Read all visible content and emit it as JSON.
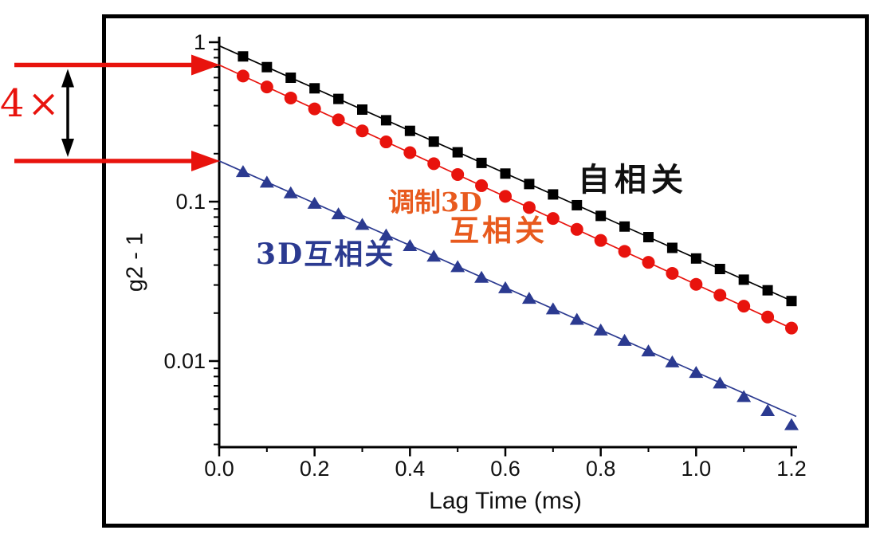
{
  "figure": {
    "background": "#ffffff",
    "frame_color": "#000000"
  },
  "chart_data": {
    "type": "line",
    "title": "",
    "xlabel": "Lag Time (ms)",
    "ylabel": "g2 - 1",
    "x_axis": {
      "range": [
        0,
        1.21
      ],
      "major_ticks": [
        0.0,
        0.2,
        0.4,
        0.6,
        0.8,
        1.0,
        1.2
      ],
      "major_tick_labels": [
        "0.0",
        "0.2",
        "0.4",
        "0.6",
        "0.8",
        "1.0",
        "1.2"
      ],
      "minor_ticks": [
        0.1,
        0.3,
        0.5,
        0.7,
        0.9,
        1.1
      ]
    },
    "y_axis": {
      "scale": "log",
      "range": [
        0.0029,
        1.06
      ],
      "major_ticks": [
        1,
        0.1,
        0.01
      ],
      "major_tick_labels": [
        "1",
        "0.1",
        "0.01"
      ],
      "minor_ticks": [
        0.9,
        0.8,
        0.7,
        0.6,
        0.5,
        0.4,
        0.3,
        0.2,
        0.09,
        0.08,
        0.07,
        0.06,
        0.05,
        0.04,
        0.03,
        0.02,
        0.009,
        0.008,
        0.007,
        0.006,
        0.005,
        0.004,
        0.003
      ]
    },
    "x": [
      0.05,
      0.1,
      0.15,
      0.2,
      0.25,
      0.3,
      0.35,
      0.4,
      0.45,
      0.5,
      0.55,
      0.6,
      0.65,
      0.7,
      0.75,
      0.8,
      0.85,
      0.9,
      0.95,
      1.0,
      1.05,
      1.1,
      1.15,
      1.2
    ],
    "series": [
      {
        "name": "autocorrelation",
        "label": "自相关",
        "label_color": "#111111",
        "color": "#000000",
        "marker": "square",
        "intercept": 0.95,
        "decay_rate_per_ms": 3.07,
        "fit_line_t": [
          0,
          1.19
        ],
        "values": [
          0.815,
          0.698,
          0.599,
          0.514,
          0.441,
          0.378,
          0.324,
          0.278,
          0.238,
          0.204,
          0.175,
          0.15,
          0.129,
          0.111,
          0.095,
          0.0814,
          0.0698,
          0.0599,
          0.0513,
          0.044,
          0.0378,
          0.0324,
          0.0278,
          0.0238
        ]
      },
      {
        "name": "modulated-3d-cross-correlation",
        "label_line1": "调制3D",
        "label_line2": "互相关",
        "label_color": "#e85a1e",
        "color": "#e8130d",
        "marker": "circle",
        "intercept": 0.72,
        "decay_rate_per_ms": 3.17,
        "fit_line_t": [
          0,
          1.2
        ],
        "values": [
          0.614,
          0.524,
          0.447,
          0.382,
          0.326,
          0.278,
          0.237,
          0.203,
          0.173,
          0.148,
          0.126,
          0.108,
          0.0919,
          0.0784,
          0.067,
          0.0571,
          0.0488,
          0.0416,
          0.0355,
          0.0303,
          0.0259,
          0.0221,
          0.0189,
          0.0161
        ]
      },
      {
        "name": "3d-cross-correlation",
        "label": "3D互相关",
        "label_color": "#2b3a90",
        "color": "#2b3a90",
        "marker": "triangle-up",
        "intercept": 0.18,
        "decay_rate_per_ms": 3.05,
        "fit_line_t": [
          0,
          1.21
        ],
        "values": [
          0.1546,
          0.1327,
          0.1139,
          0.0978,
          0.084,
          0.0721,
          0.0619,
          0.0531,
          0.0456,
          0.0392,
          0.0336,
          0.0289,
          0.0248,
          0.0213,
          0.0183,
          0.0157,
          0.0135,
          0.0116,
          0.0099,
          0.0085,
          0.0073,
          0.006,
          0.0049,
          0.004
        ]
      }
    ],
    "annotation": {
      "factor_label": "4×",
      "upper_arrow_value": 0.72,
      "lower_arrow_value": 0.18,
      "arrow_color": "#e8130d",
      "span_arrow_color": "#000000"
    }
  }
}
